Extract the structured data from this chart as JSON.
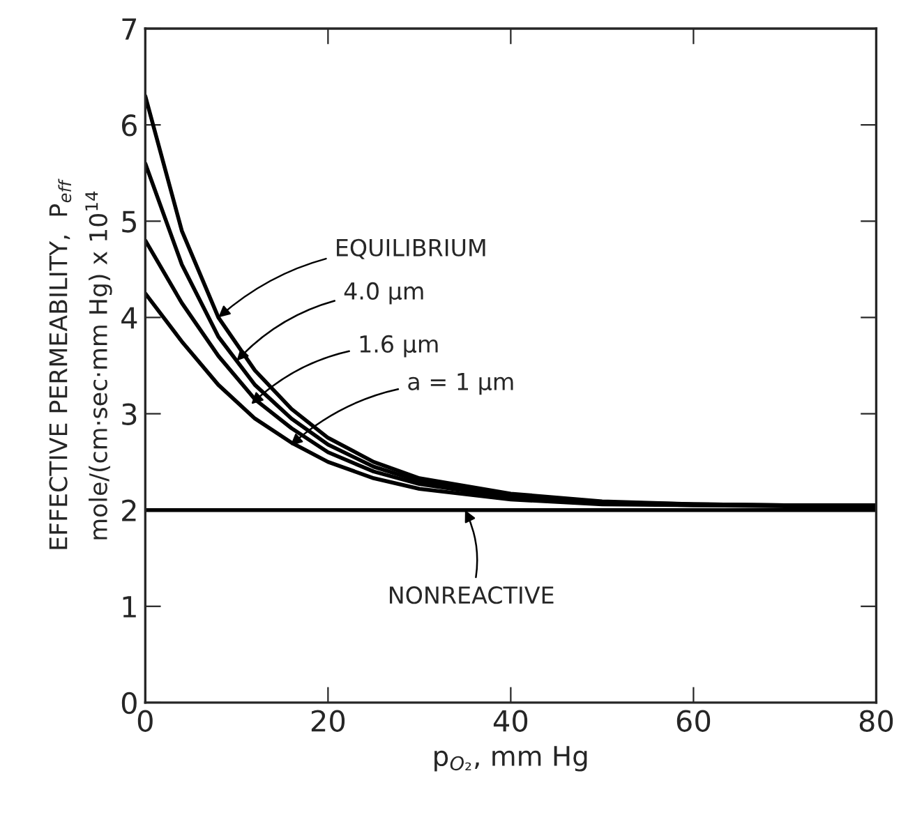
{
  "chart_data": {
    "type": "line",
    "xlabel": "p$_{O₂}$, mm Hg",
    "ylabel": "EFFECTIVE PERMEABILITY,  P$_{eff}$\nmole/(cm·sec·mm Hg) x 10$^{14}$",
    "x": [
      0,
      4,
      8,
      12,
      16,
      20,
      25,
      30,
      40,
      50,
      60,
      70,
      80
    ],
    "series": [
      {
        "color": "#000000",
        "values": [
          6.3,
          4.9,
          4.0,
          3.45,
          3.05,
          2.75,
          2.5,
          2.33,
          2.17,
          2.09,
          2.06,
          2.05,
          2.05
        ]
      },
      {
        "color": "#000000",
        "values": [
          5.6,
          4.55,
          3.8,
          3.3,
          2.95,
          2.68,
          2.45,
          2.3,
          2.15,
          2.08,
          2.06,
          2.05,
          2.05
        ]
      },
      {
        "color": "#000000",
        "values": [
          4.8,
          4.15,
          3.6,
          3.15,
          2.85,
          2.6,
          2.4,
          2.27,
          2.13,
          2.07,
          2.05,
          2.05,
          2.05
        ]
      },
      {
        "color": "#000000",
        "values": [
          4.25,
          3.75,
          3.3,
          2.95,
          2.7,
          2.5,
          2.33,
          2.22,
          2.11,
          2.06,
          2.05,
          2.04,
          2.04
        ]
      },
      {
        "color": "#000000",
        "values": [
          2,
          2,
          2,
          2,
          2,
          2,
          2,
          2,
          2,
          2,
          2,
          2,
          2
        ]
      }
    ],
    "annotations": [
      {
        "text": "EQUILIBRIUM",
        "x": 8,
        "y": 4.0
      },
      {
        "text": "4.0 μm",
        "x": 10,
        "y": 3.55
      },
      {
        "text": "1.6 μm",
        "x": 11.6,
        "y": 3.1
      },
      {
        "text": "a = 1 μm",
        "x": 15.9,
        "y": 2.67
      },
      {
        "text": "NONREACTIVE",
        "x": 35,
        "y": 2.0
      }
    ],
    "xlim": [
      0,
      80
    ],
    "ylim": [
      0,
      7
    ],
    "xticks": [
      0,
      20,
      40,
      60,
      80
    ],
    "yticks": [
      0,
      1,
      2,
      3,
      4,
      5,
      6,
      7
    ],
    "grid": false,
    "legend": false,
    "marker": "none",
    "line_style": "solid"
  }
}
